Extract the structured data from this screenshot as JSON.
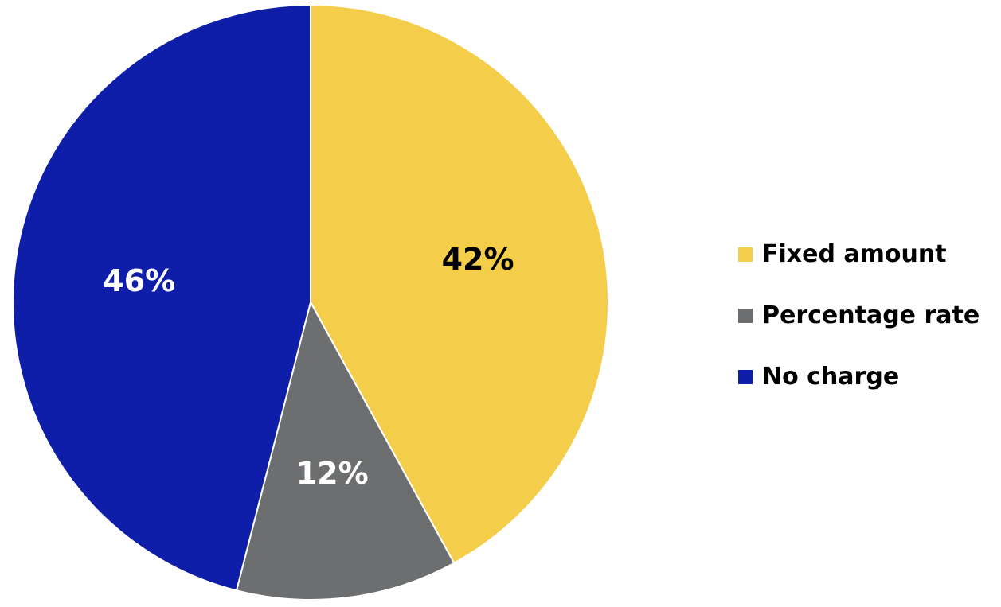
{
  "chart_data": {
    "type": "pie",
    "title": "",
    "start_angle_deg": 0,
    "direction": "clockwise",
    "legend_position": "right",
    "slices": [
      {
        "name": "Fixed amount",
        "value": 42,
        "label": "42%",
        "color": "#F4CE4A",
        "label_color": "#000000"
      },
      {
        "name": "Percentage rate",
        "value": 12,
        "label": "12%",
        "color": "#6C6E6F",
        "label_color": "#FFFFFF"
      },
      {
        "name": "No charge",
        "value": 46,
        "label": "46%",
        "color": "#0F1EA8",
        "label_color": "#FFFFFF"
      }
    ]
  }
}
